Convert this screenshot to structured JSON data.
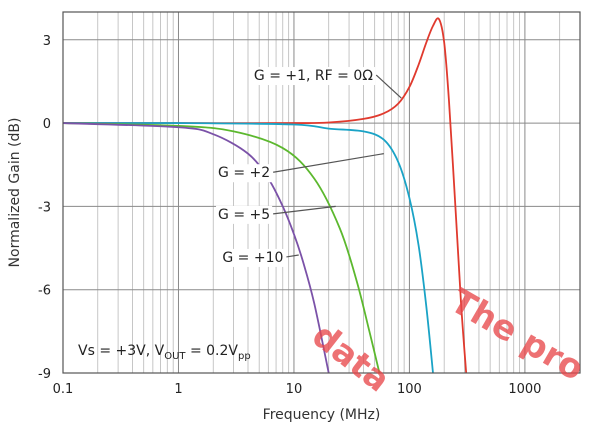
{
  "chart_data": {
    "type": "line",
    "title": "",
    "xlabel": "Frequency (MHz)",
    "ylabel": "Normalized Gain (dB)",
    "x_scale": "log",
    "xlim": [
      0.1,
      3000
    ],
    "ylim": [
      -9,
      4
    ],
    "x_ticks": [
      0.1,
      1,
      10,
      100,
      1000
    ],
    "x_tick_labels": [
      "0.1",
      "1",
      "10",
      "100",
      "1000"
    ],
    "y_ticks": [
      3,
      0,
      -3,
      -6,
      -9
    ],
    "y_tick_labels": [
      "3",
      "0",
      "-3",
      "-6",
      "-9"
    ],
    "grid": true,
    "series": [
      {
        "name": "G = +1, RF = 0Ω",
        "color": "#e03a2e",
        "x": [
          0.1,
          1,
          10,
          20,
          40,
          60,
          80,
          100,
          120,
          140,
          160,
          180,
          200,
          220,
          250,
          280,
          310
        ],
        "y": [
          0,
          0,
          0,
          0.02,
          0.15,
          0.35,
          0.7,
          1.3,
          2.1,
          2.9,
          3.5,
          3.75,
          2.9,
          0.8,
          -3.0,
          -6.5,
          -9.0
        ]
      },
      {
        "name": "G = +2",
        "color": "#1aa3c6",
        "x": [
          0.1,
          1,
          10,
          20,
          40,
          60,
          80,
          100,
          120,
          140,
          160
        ],
        "y": [
          0,
          0,
          -0.05,
          -0.2,
          -0.3,
          -0.6,
          -1.4,
          -2.7,
          -4.4,
          -6.6,
          -9.0
        ]
      },
      {
        "name": "G = +5",
        "color": "#5cb82e",
        "x": [
          0.1,
          1,
          3,
          8,
          15,
          25,
          35,
          45,
          55
        ],
        "y": [
          0,
          -0.1,
          -0.3,
          -0.9,
          -2.0,
          -3.8,
          -5.7,
          -7.5,
          -9.0
        ]
      },
      {
        "name": "G = +10",
        "color": "#7b52a8",
        "x": [
          0.1,
          1,
          2,
          4,
          6,
          8,
          10,
          12,
          15,
          20
        ],
        "y": [
          0,
          -0.15,
          -0.4,
          -1.1,
          -2.0,
          -3.0,
          -4.0,
          -5.0,
          -6.5,
          -9.0
        ]
      }
    ],
    "annotations": [
      {
        "text": "G = +1, RF = 0Ω",
        "x_text": 4.5,
        "y_text": 1.55,
        "x_point": 85,
        "y_point": 0.9
      },
      {
        "text": "G = +2",
        "x_text": 2.2,
        "y_text": -1.95,
        "x_point": 60,
        "y_point": -1.1
      },
      {
        "text": "G = +5",
        "x_text": 2.2,
        "y_text": -3.45,
        "x_point": 23,
        "y_point": -3.0
      },
      {
        "text": "G = +10",
        "x_text": 2.4,
        "y_text": -5.0,
        "x_point": 11,
        "y_point": -4.75
      }
    ],
    "condition_note": {
      "prefix": "Vs = +3V, V",
      "sub1": "OUT",
      "mid": " = 0.2V",
      "sub2": "pp"
    },
    "watermark": {
      "line1": "The pro",
      "line2": "data"
    }
  }
}
